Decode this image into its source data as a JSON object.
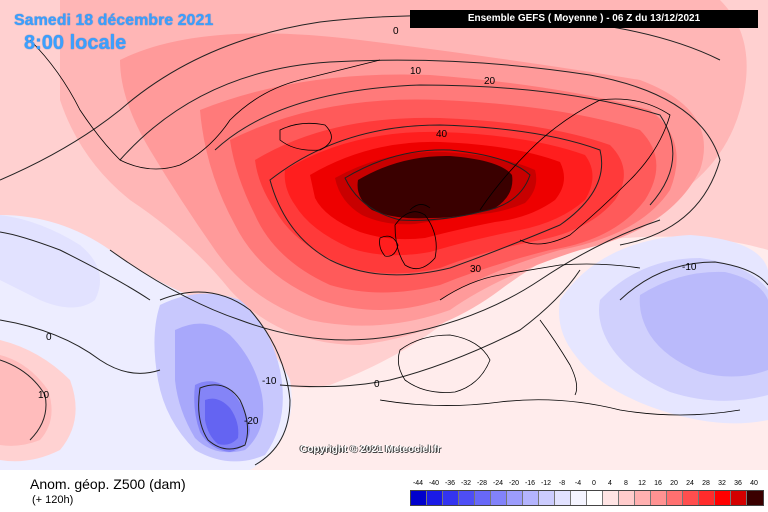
{
  "title": {
    "date": "Samedi 18 décembre 2021",
    "time": "8:00 locale"
  },
  "header": {
    "model_run": "Ensemble GEFS  ( Moyenne )  - 06 Z du 13/12/2021"
  },
  "copyright": "Copyright © 2021 Meteociel.fr",
  "footer": {
    "variable": "Anom. géop. Z500 (dam)",
    "lead_time": "(+ 120h)"
  },
  "contour_labels": {
    "c0_top": "0",
    "c10_north": "10",
    "c20_north": "20",
    "c40": "40",
    "c30": "30",
    "c10_med": "10",
    "c0_west": "0",
    "c0_atl": "0",
    "cm10": "-10",
    "cm20": "-20",
    "cm10_east": "-10",
    "c10_far_west": "10"
  },
  "colorbar": {
    "labels": [
      "-44",
      "-40",
      "-36",
      "-32",
      "-28",
      "-24",
      "-20",
      "-16",
      "-12",
      "-8",
      "-4",
      "0",
      "4",
      "8",
      "12",
      "16",
      "20",
      "24",
      "28",
      "32",
      "36",
      "40"
    ],
    "colors": [
      "#0000cc",
      "#1a1ae6",
      "#3434f0",
      "#4e4ef5",
      "#6868f8",
      "#8282fa",
      "#9c9cfc",
      "#b4b4fd",
      "#ccccfe",
      "#e2e2ff",
      "#f4f4ff",
      "#ffffff",
      "#ffe4e4",
      "#ffcccc",
      "#ffb0b0",
      "#ff9292",
      "#ff7070",
      "#ff4e4e",
      "#ff2c2c",
      "#ff0000",
      "#d40000",
      "#3a0000"
    ]
  },
  "colors": {
    "accent_title": "#3aa0ff",
    "anomaly_max": "#3a0000"
  }
}
